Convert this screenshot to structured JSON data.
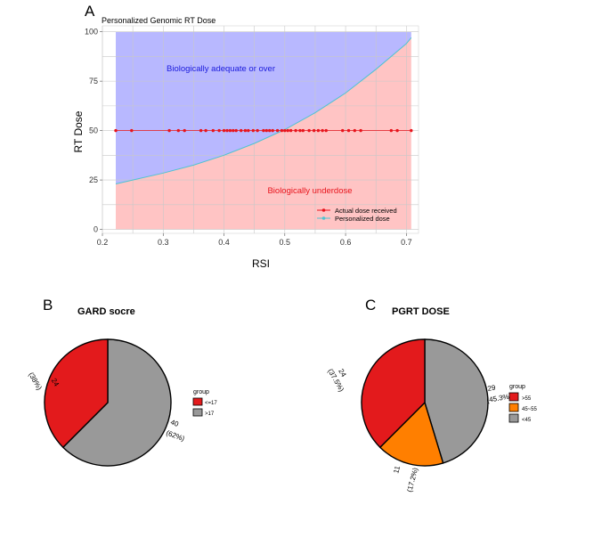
{
  "panels": {
    "a": "A",
    "b": "B",
    "c": "C"
  },
  "colors": {
    "adequate_fill": "#b8b8ff",
    "underdose_fill": "#ffc4c4",
    "curve": "#4fc4d0",
    "points": "#e8141c",
    "adequate_text": "#1a1adc",
    "underdose_text": "#e8141c",
    "red_slice": "#e31a1c",
    "gray_slice": "#999999",
    "orange_slice": "#ff7f00",
    "grid": "#c8c8c8"
  },
  "chart_data": [
    {
      "type": "scatter",
      "title": "Personalized Genomic RT Dose",
      "xlabel": "RSI",
      "ylabel": "RT Dose",
      "xlim": [
        0.2,
        0.72
      ],
      "ylim": [
        0,
        100
      ],
      "x_ticks": [
        "0.2",
        "0.3",
        "0.4",
        "0.5",
        "0.6",
        "0.7"
      ],
      "y_ticks": [
        "0",
        "25",
        "50",
        "75",
        "100"
      ],
      "grid": true,
      "region_labels": {
        "upper": "Biologically adequate or over",
        "lower": "Biologically underdose"
      },
      "series": [
        {
          "name": "Actual dose received",
          "x": [
            0.222,
            0.248,
            0.31,
            0.325,
            0.335,
            0.362,
            0.37,
            0.382,
            0.392,
            0.4,
            0.405,
            0.41,
            0.415,
            0.42,
            0.428,
            0.435,
            0.44,
            0.448,
            0.455,
            0.465,
            0.47,
            0.475,
            0.48,
            0.488,
            0.495,
            0.5,
            0.505,
            0.51,
            0.518,
            0.525,
            0.53,
            0.54,
            0.548,
            0.555,
            0.562,
            0.568,
            0.595,
            0.605,
            0.615,
            0.625,
            0.675,
            0.685,
            0.708
          ],
          "y": [
            50,
            50,
            50,
            50,
            50,
            50,
            50,
            50,
            50,
            50,
            50,
            50,
            50,
            50,
            50,
            50,
            50,
            50,
            50,
            50,
            50,
            50,
            50,
            50,
            50,
            50,
            50,
            50,
            50,
            50,
            50,
            50,
            50,
            50,
            50,
            50,
            50,
            50,
            50,
            50,
            50,
            50,
            50
          ]
        },
        {
          "name": "Personalized dose",
          "x": [
            0.222,
            0.25,
            0.3,
            0.35,
            0.4,
            0.45,
            0.5,
            0.55,
            0.6,
            0.65,
            0.7,
            0.708
          ],
          "y": [
            23,
            25,
            28.5,
            32.5,
            37.5,
            43.5,
            50.5,
            59,
            69,
            81,
            94,
            97
          ]
        }
      ]
    },
    {
      "type": "pie",
      "title": "GARD socre",
      "legend_title": "group",
      "slices": [
        {
          "name": "<=17",
          "value": 24,
          "label": "24\n(38%)"
        },
        {
          "name": ">17",
          "value": 40,
          "label": "40\n(62%)"
        }
      ]
    },
    {
      "type": "pie",
      "title": "PGRT DOSE",
      "legend_title": "group",
      "slices": [
        {
          "name": ">55",
          "value": 24,
          "label": "24\n(37.5%)"
        },
        {
          "name": "45~55",
          "value": 11,
          "label": "11\n(17.2%)"
        },
        {
          "name": "<45",
          "value": 29,
          "label": "29\n(45.3%)"
        }
      ]
    }
  ]
}
